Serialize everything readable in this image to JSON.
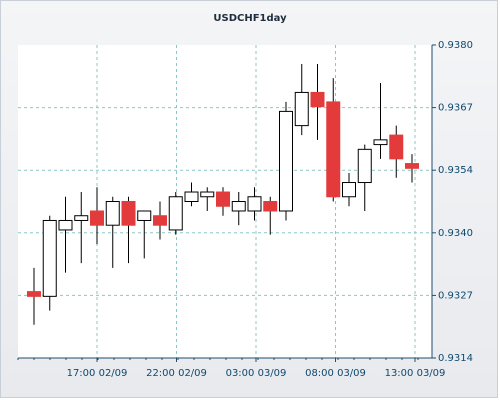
{
  "chart_data": {
    "type": "candlestick",
    "title": "USDCHF1day",
    "xlabel": "",
    "ylabel": "",
    "ylim": [
      0.9314,
      0.938
    ],
    "y_ticks": [
      "0.9380",
      "0.9367",
      "0.9354",
      "0.9340",
      "0.9327",
      "0.9314"
    ],
    "x_ticks": [
      "17:00 02/09",
      "22:00 02/09",
      "03:00 03/09",
      "08:00 03/09",
      "13:00 03/09"
    ],
    "grid": true,
    "colors": {
      "up": "#ffffff",
      "down": "#e33b3b",
      "wick": "#000000",
      "grid": "#8cc7c7",
      "axis": "#1f4e6e"
    },
    "candles": [
      {
        "open": 0.9328,
        "high": 0.9333,
        "low": 0.9321,
        "close": 0.9327
      },
      {
        "open": 0.9327,
        "high": 0.9344,
        "low": 0.9324,
        "close": 0.9343
      },
      {
        "open": 0.9341,
        "high": 0.9348,
        "low": 0.9332,
        "close": 0.9343
      },
      {
        "open": 0.9343,
        "high": 0.9349,
        "low": 0.9334,
        "close": 0.9344
      },
      {
        "open": 0.9345,
        "high": 0.935,
        "low": 0.9338,
        "close": 0.9342
      },
      {
        "open": 0.9342,
        "high": 0.9348,
        "low": 0.9333,
        "close": 0.9347
      },
      {
        "open": 0.9347,
        "high": 0.9348,
        "low": 0.9334,
        "close": 0.9342
      },
      {
        "open": 0.9343,
        "high": 0.9345,
        "low": 0.9335,
        "close": 0.9345
      },
      {
        "open": 0.9344,
        "high": 0.9347,
        "low": 0.9339,
        "close": 0.9342
      },
      {
        "open": 0.9341,
        "high": 0.9349,
        "low": 0.934,
        "close": 0.9348
      },
      {
        "open": 0.9347,
        "high": 0.9351,
        "low": 0.9346,
        "close": 0.9349
      },
      {
        "open": 0.9348,
        "high": 0.935,
        "low": 0.9345,
        "close": 0.9349
      },
      {
        "open": 0.9349,
        "high": 0.935,
        "low": 0.9344,
        "close": 0.9346
      },
      {
        "open": 0.9345,
        "high": 0.9349,
        "low": 0.9342,
        "close": 0.9347
      },
      {
        "open": 0.9345,
        "high": 0.935,
        "low": 0.9343,
        "close": 0.9348
      },
      {
        "open": 0.9347,
        "high": 0.9348,
        "low": 0.934,
        "close": 0.9345
      },
      {
        "open": 0.9345,
        "high": 0.9368,
        "low": 0.9343,
        "close": 0.9366
      },
      {
        "open": 0.9363,
        "high": 0.9376,
        "low": 0.9361,
        "close": 0.937
      },
      {
        "open": 0.937,
        "high": 0.9376,
        "low": 0.936,
        "close": 0.9367
      },
      {
        "open": 0.9368,
        "high": 0.9373,
        "low": 0.9347,
        "close": 0.9348
      },
      {
        "open": 0.9348,
        "high": 0.9353,
        "low": 0.9346,
        "close": 0.9351
      },
      {
        "open": 0.9351,
        "high": 0.9359,
        "low": 0.9345,
        "close": 0.9358
      },
      {
        "open": 0.9359,
        "high": 0.9372,
        "low": 0.9356,
        "close": 0.936
      },
      {
        "open": 0.9361,
        "high": 0.9363,
        "low": 0.9352,
        "close": 0.9356
      },
      {
        "open": 0.9355,
        "high": 0.9357,
        "low": 0.9351,
        "close": 0.9354
      }
    ]
  }
}
